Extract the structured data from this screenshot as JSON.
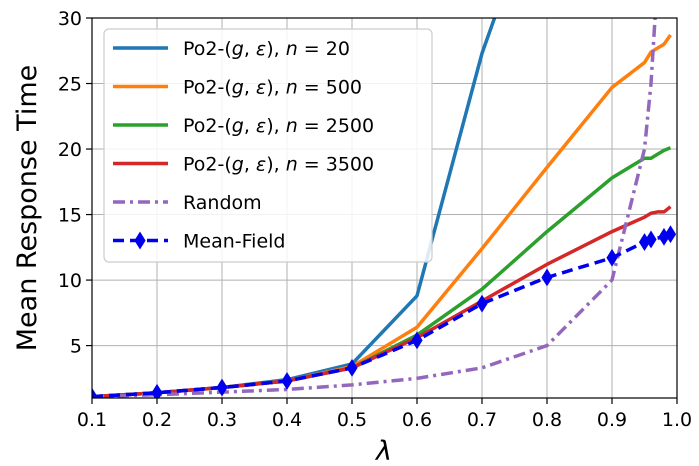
{
  "chart_data": {
    "type": "line",
    "xlabel": "λ",
    "ylabel": "Mean Response Time",
    "xlim": [
      0.1,
      1.0
    ],
    "ylim": [
      1,
      30
    ],
    "xticks": [
      0.1,
      0.2,
      0.3,
      0.4,
      0.5,
      0.6,
      0.7,
      0.8,
      0.9,
      1.0
    ],
    "xtick_labels": [
      "0.1",
      "0.2",
      "0.3",
      "0.4",
      "0.5",
      "0.6",
      "0.7",
      "0.8",
      "0.9",
      "1.0"
    ],
    "yticks": [
      5,
      10,
      15,
      20,
      25,
      30
    ],
    "ytick_labels": [
      "5",
      "10",
      "15",
      "20",
      "25",
      "30"
    ],
    "grid": true,
    "legend_position": "upper-left",
    "series": [
      {
        "name": "Po2-(g, ε), n = 20",
        "label_parts": [
          "Po2-(",
          "g",
          ", ",
          "ε",
          "), ",
          "n",
          " = 20"
        ],
        "color": "#1f77b4",
        "style": "solid",
        "x": [
          0.1,
          0.2,
          0.3,
          0.4,
          0.5,
          0.6,
          0.7,
          0.73
        ],
        "y": [
          1.1,
          1.4,
          1.8,
          2.4,
          3.6,
          8.8,
          27.3,
          31.5
        ]
      },
      {
        "name": "Po2-(g, ε), n = 500",
        "label_parts": [
          "Po2-(",
          "g",
          ", ",
          "ε",
          "), ",
          "n",
          " = 500"
        ],
        "color": "#ff7f0e",
        "style": "solid",
        "x": [
          0.1,
          0.2,
          0.3,
          0.4,
          0.5,
          0.6,
          0.7,
          0.8,
          0.9,
          0.95,
          0.96,
          0.97,
          0.98,
          0.99
        ],
        "y": [
          1.1,
          1.4,
          1.8,
          2.3,
          3.4,
          6.4,
          12.4,
          18.6,
          24.7,
          26.6,
          27.4,
          27.7,
          28.0,
          28.7
        ]
      },
      {
        "name": "Po2-(g, ε), n = 2500",
        "label_parts": [
          "Po2-(",
          "g",
          ", ",
          "ε",
          "), ",
          "n",
          " = 2500"
        ],
        "color": "#2ca02c",
        "style": "solid",
        "x": [
          0.1,
          0.2,
          0.3,
          0.4,
          0.5,
          0.6,
          0.7,
          0.8,
          0.9,
          0.95,
          0.96,
          0.97,
          0.98,
          0.99
        ],
        "y": [
          1.1,
          1.4,
          1.8,
          2.3,
          3.3,
          5.8,
          9.3,
          13.7,
          17.8,
          19.3,
          19.3,
          19.6,
          19.9,
          20.1
        ]
      },
      {
        "name": "Po2-(g, ε), n = 3500",
        "label_parts": [
          "Po2-(",
          "g",
          ", ",
          "ε",
          "), ",
          "n",
          " = 3500"
        ],
        "color": "#d62728",
        "style": "solid",
        "x": [
          0.1,
          0.2,
          0.3,
          0.4,
          0.5,
          0.6,
          0.7,
          0.8,
          0.9,
          0.95,
          0.96,
          0.97,
          0.98,
          0.99
        ],
        "y": [
          1.1,
          1.4,
          1.8,
          2.3,
          3.3,
          5.6,
          8.4,
          11.2,
          13.7,
          14.8,
          15.1,
          15.2,
          15.2,
          15.6
        ]
      },
      {
        "name": "Random",
        "color": "#9467bd",
        "style": "dashdot",
        "x": [
          0.1,
          0.2,
          0.3,
          0.4,
          0.5,
          0.6,
          0.7,
          0.8,
          0.9,
          0.95,
          0.96,
          0.97
        ],
        "y": [
          1.1,
          1.25,
          1.45,
          1.65,
          2.0,
          2.5,
          3.3,
          5.0,
          10.0,
          20.0,
          25.0,
          33.0
        ]
      },
      {
        "name": "Mean-Field",
        "color": "#0000ee",
        "style": "dashed",
        "marker": "diamond",
        "x": [
          0.1,
          0.2,
          0.3,
          0.4,
          0.5,
          0.6,
          0.7,
          0.8,
          0.9,
          0.95,
          0.96,
          0.98,
          0.99
        ],
        "y": [
          1.1,
          1.4,
          1.8,
          2.3,
          3.3,
          5.4,
          8.2,
          10.2,
          11.7,
          12.9,
          13.1,
          13.3,
          13.5
        ]
      }
    ]
  }
}
